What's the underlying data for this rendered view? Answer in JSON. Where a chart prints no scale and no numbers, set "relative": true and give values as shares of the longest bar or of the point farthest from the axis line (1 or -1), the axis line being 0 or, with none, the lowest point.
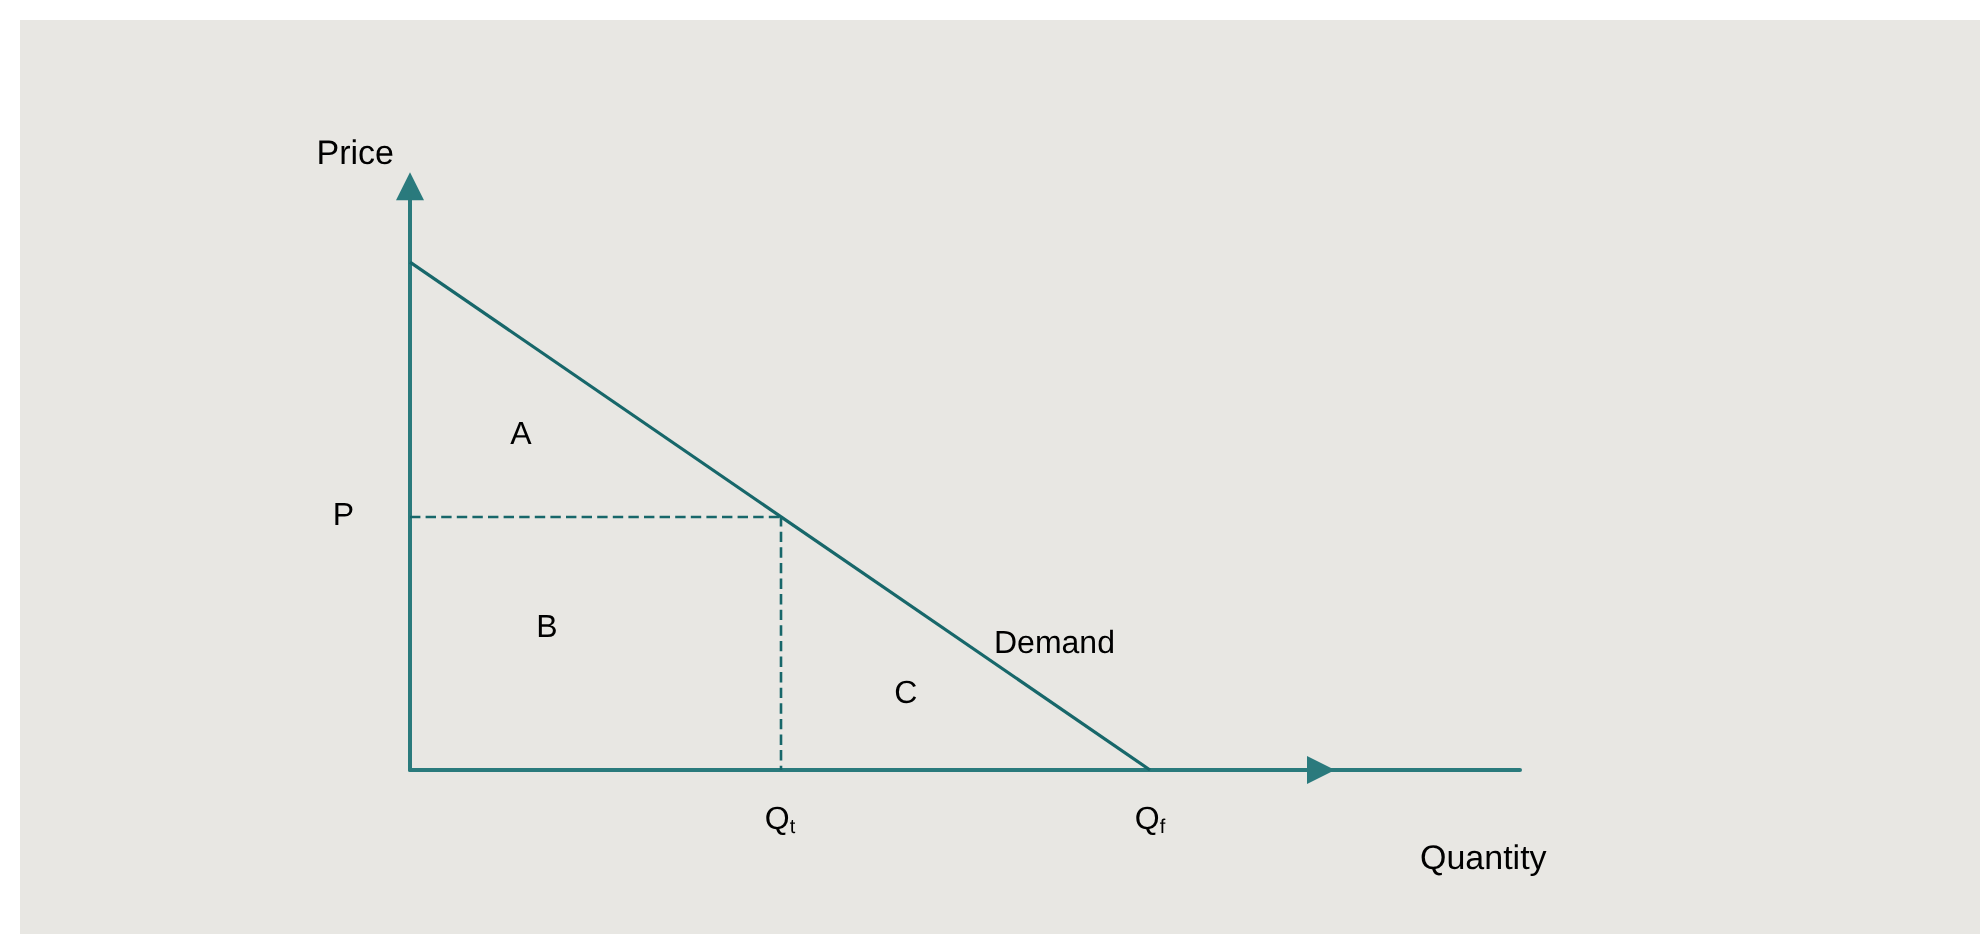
{
  "chart_data": {
    "type": "line",
    "relative": true,
    "xlabel": "Quantity",
    "ylabel": "Price",
    "categories": [
      null,
      "Q$_{t}$",
      "Q$_{f}$",
      null
    ],
    "series": [
      {
        "name": "Demand",
        "color": "#17676a",
        "values": [
          1,
          0.5,
          0,
          null
        ]
      }
    ],
    "ref_lines": [
      {
        "axis": "y",
        "value": 0.5,
        "label": "P",
        "line_style": "dashed",
        "color": "#17676a"
      },
      {
        "axis": "x",
        "value": "Q$_{t}$",
        "line_style": "dashed",
        "color": "#17676a"
      }
    ],
    "annotations": [
      "A",
      "B",
      "C"
    ],
    "marker": "none",
    "grid": false,
    "legend": false
  }
}
